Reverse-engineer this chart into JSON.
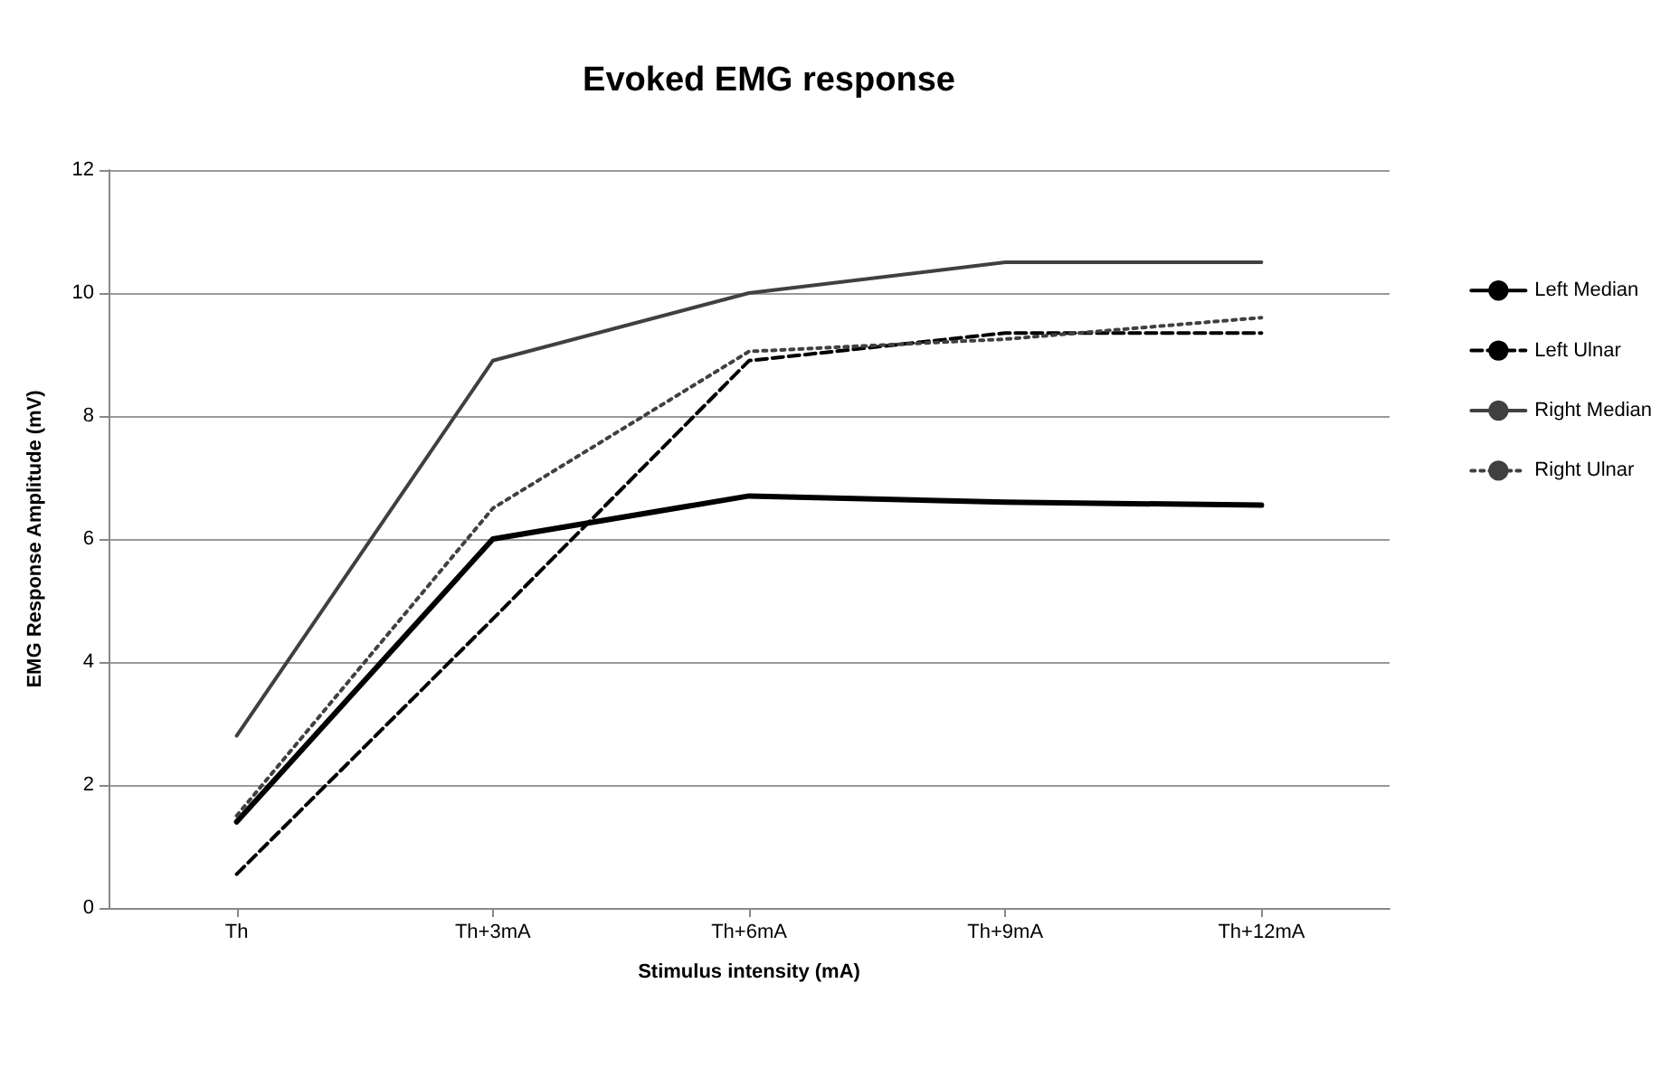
{
  "chart_data": {
    "type": "line",
    "title": "Evoked EMG response",
    "xlabel": "Stimulus intensity (mA)",
    "ylabel": "EMG Response Amplitude (mV)",
    "categories": [
      "Th",
      "Th+3mA",
      "Th+6mA",
      "Th+9mA",
      "Th+12mA"
    ],
    "series": [
      {
        "name": "Left Median",
        "color": "#000000",
        "line_style": "solid",
        "values": [
          1.4,
          6.0,
          6.7,
          6.6,
          6.55
        ]
      },
      {
        "name": "Left Ulnar",
        "color": "#000000",
        "line_style": "dashed",
        "values": [
          0.55,
          4.7,
          8.9,
          9.35,
          9.35
        ]
      },
      {
        "name": "Right Median",
        "color": "#404040",
        "line_style": "solid",
        "values": [
          2.8,
          8.9,
          10.0,
          10.5,
          10.5
        ]
      },
      {
        "name": "Right Ulnar",
        "color": "#404040",
        "line_style": "dotted",
        "values": [
          1.5,
          6.5,
          9.05,
          9.25,
          9.6
        ]
      }
    ],
    "ylim": [
      0,
      12
    ],
    "yticks": [
      0,
      2,
      4,
      6,
      8,
      10,
      12
    ],
    "grid": "y",
    "legend": "right",
    "marker": "none"
  }
}
